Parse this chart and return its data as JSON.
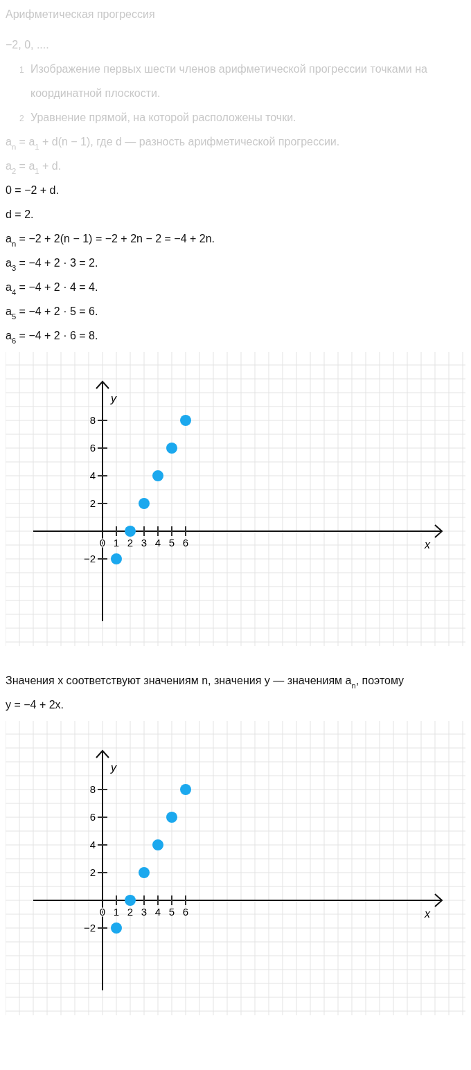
{
  "chart_data": [
    {
      "type": "scatter",
      "title": "Арифметическая прогрессия",
      "annotations": [
        "−2, 0, ....",
        "1 Изображение первых шести членов арифметической прогрессии точками на координатной плоскости.",
        "2 Уравнение прямой, на которой расположены точки.",
        "a$_{n}$ = a$_{1}$ + d(n − 1), где d — разность арифметической прогрессии.",
        "a$_{2}$ = a$_{1}$ + d.",
        "0 = −2 + d.",
        "d = 2.",
        "a$_{n}$ = −2 + 2(n − 1) = −2 + 2n − 2 = −4 + 2n.",
        "a$_{3}$ = −4 + 2 · 3 = 2.",
        "a$_{4}$ = −4 + 2 · 4 = 4.",
        "a$_{5}$ = −4 + 2 · 5 = 6.",
        "a$_{6}$ = −4 + 2 · 6 = 8."
      ],
      "xlabel": "x",
      "ylabel": "y",
      "x": [
        1,
        2,
        3,
        4,
        5,
        6
      ],
      "values": [
        -2,
        0,
        2,
        4,
        6,
        8
      ],
      "color": "#1ba8ee",
      "marker": "circle",
      "xlim": [
        -5,
        24.5
      ],
      "ylim": [
        -6.5,
        10.8
      ],
      "xticks": [
        0,
        1,
        2,
        3,
        4,
        5,
        6
      ],
      "yticks": [
        {
          "value": -2,
          "label": "−2"
        },
        2,
        4,
        6,
        8
      ],
      "grid": true
    },
    {
      "type": "scatter",
      "annotations": [
        "Значения x соответствуют значениям n, значения y — значениям a$_{n}$, поэтому",
        "y = −4 + 2x."
      ],
      "xlabel": "x",
      "ylabel": "y",
      "x": [
        1,
        2,
        3,
        4,
        5,
        6
      ],
      "values": [
        -2,
        0,
        2,
        4,
        6,
        8
      ],
      "color": "#1ba8ee",
      "marker": "circle",
      "xlim": [
        -5,
        24.5
      ],
      "ylim": [
        -6.5,
        10.8
      ],
      "xticks": [
        0,
        1,
        2,
        3,
        4,
        5,
        6
      ],
      "yticks": [
        {
          "value": -2,
          "label": "−2"
        },
        2,
        4,
        6,
        8
      ],
      "grid": true
    }
  ]
}
